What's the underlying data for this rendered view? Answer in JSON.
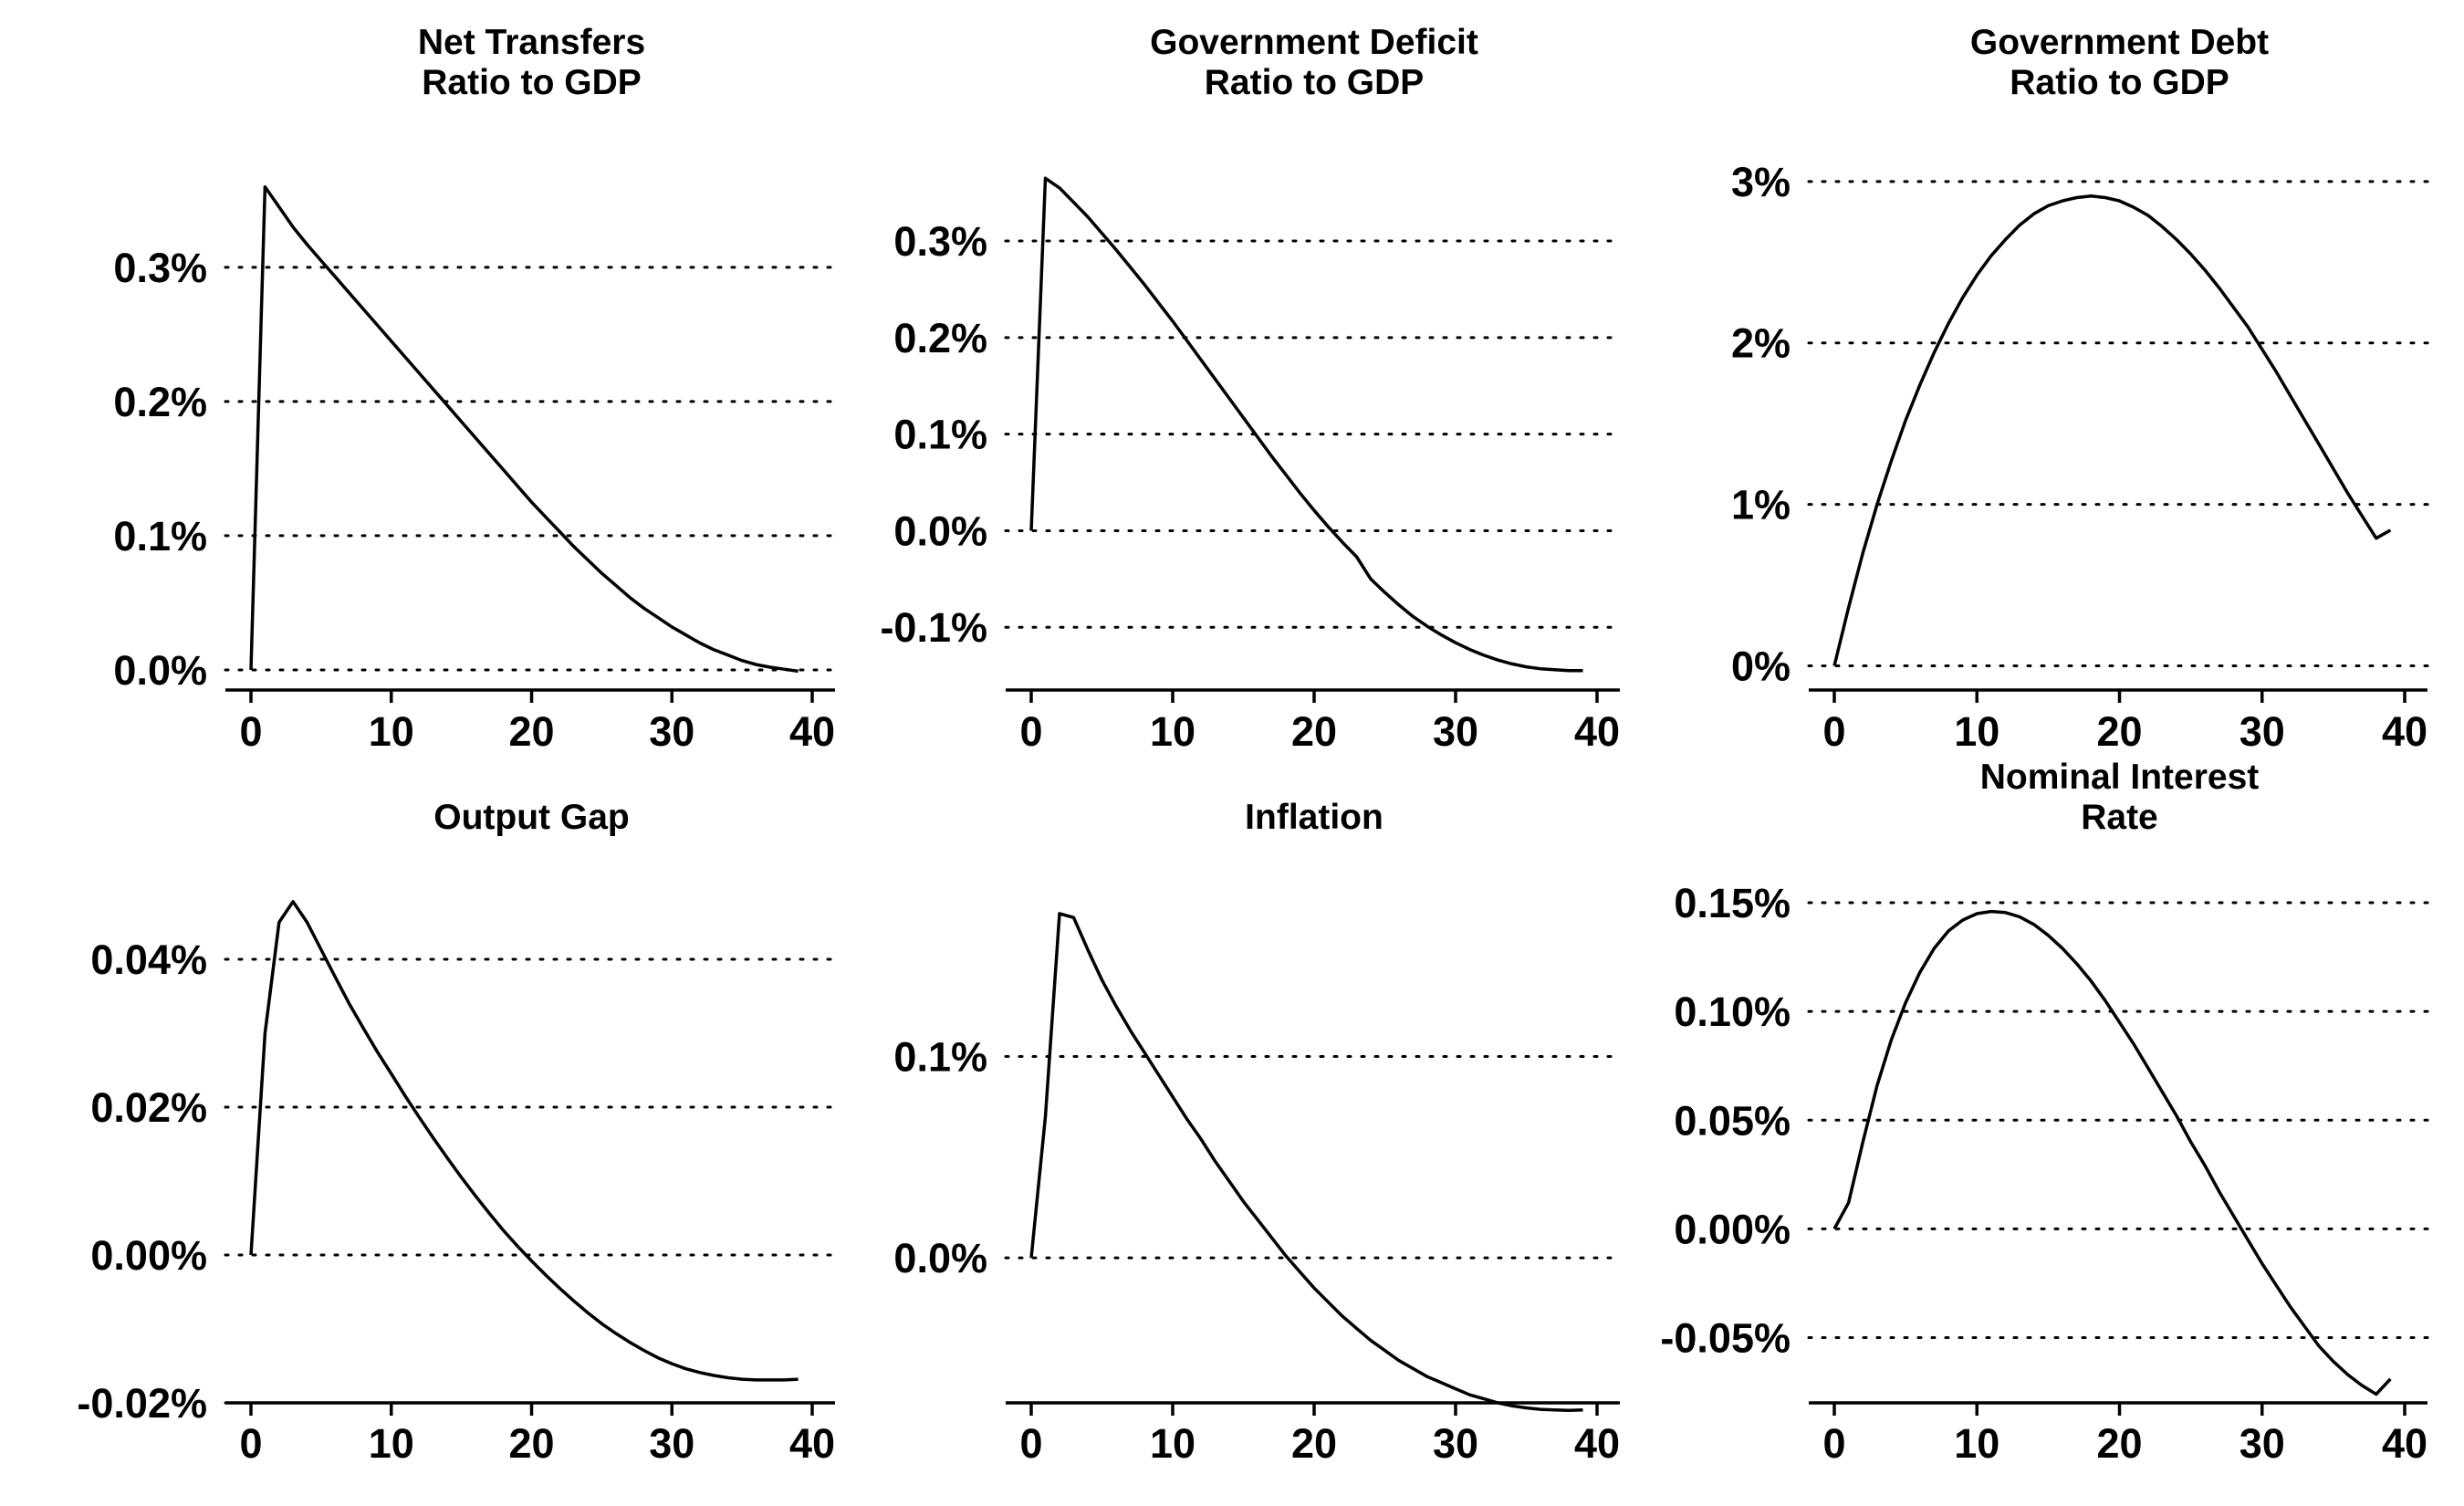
{
  "chart_data": [
    {
      "type": "line",
      "title": [
        "Net Transfers",
        "Ratio to GDP"
      ],
      "xlim": [
        0,
        40
      ],
      "xticks": [
        "0",
        "10",
        "20",
        "30",
        "40"
      ],
      "ylim": [
        -0.015,
        0.37
      ],
      "yticks": [
        0.0,
        0.1,
        0.2,
        0.3
      ],
      "ytick_labels": [
        "0.0%",
        "0.1%",
        "0.2%",
        "0.3%"
      ],
      "grid": true,
      "series": [
        {
          "x": [
            0,
            1,
            2,
            3,
            4,
            5,
            6,
            7,
            8,
            9,
            10,
            11,
            12,
            13,
            14,
            15,
            16,
            17,
            18,
            19,
            20,
            21,
            22,
            23,
            24,
            25,
            26,
            27,
            28,
            29,
            30,
            31,
            32,
            33,
            34,
            35,
            36,
            37,
            38,
            39
          ],
          "values": [
            0,
            0.36,
            0.345,
            0.33,
            0.317,
            0.305,
            0.293,
            0.281,
            0.269,
            0.257,
            0.245,
            0.233,
            0.221,
            0.209,
            0.197,
            0.185,
            0.173,
            0.161,
            0.149,
            0.137,
            0.125,
            0.114,
            0.103,
            0.092,
            0.082,
            0.072,
            0.063,
            0.054,
            0.046,
            0.039,
            0.032,
            0.026,
            0.02,
            0.015,
            0.011,
            0.007,
            0.004,
            0.002,
            0.0005,
            -0.001
          ]
        }
      ]
    },
    {
      "type": "line",
      "title": [
        "Government Deficit",
        "Ratio to GDP"
      ],
      "xlim": [
        0,
        40
      ],
      "xticks": [
        "0",
        "10",
        "20",
        "30",
        "40"
      ],
      "ylim": [
        -0.165,
        0.37
      ],
      "yticks": [
        -0.1,
        0.0,
        0.1,
        0.2,
        0.3
      ],
      "ytick_labels": [
        "-0.1%",
        "0.0%",
        "0.1%",
        "0.2%",
        "0.3%"
      ],
      "grid": true,
      "series": [
        {
          "x": [
            0,
            1,
            2,
            3,
            4,
            5,
            6,
            7,
            8,
            9,
            10,
            11,
            12,
            13,
            14,
            15,
            16,
            17,
            18,
            19,
            20,
            21,
            22,
            23,
            24,
            25,
            26,
            27,
            28,
            29,
            30,
            31,
            32,
            33,
            34,
            35,
            36,
            37,
            38,
            39
          ],
          "values": [
            0,
            0.365,
            0.355,
            0.34,
            0.325,
            0.308,
            0.291,
            0.273,
            0.255,
            0.236,
            0.217,
            0.197,
            0.177,
            0.157,
            0.137,
            0.117,
            0.097,
            0.077,
            0.058,
            0.039,
            0.021,
            0.004,
            -0.012,
            -0.027,
            -0.05,
            -0.064,
            -0.077,
            -0.089,
            -0.099,
            -0.108,
            -0.116,
            -0.123,
            -0.129,
            -0.134,
            -0.138,
            -0.141,
            -0.143,
            -0.144,
            -0.145,
            -0.145
          ]
        }
      ]
    },
    {
      "type": "line",
      "title": [
        "Government Debt",
        "Ratio to GDP"
      ],
      "xlim": [
        0,
        40
      ],
      "xticks": [
        "0",
        "10",
        "20",
        "30",
        "40"
      ],
      "ylim": [
        -0.15,
        3.05
      ],
      "yticks": [
        0,
        1,
        2,
        3
      ],
      "ytick_labels": [
        "0%",
        "1%",
        "2%",
        "3%"
      ],
      "grid": true,
      "series": [
        {
          "x": [
            0,
            1,
            2,
            3,
            4,
            5,
            6,
            7,
            8,
            9,
            10,
            11,
            12,
            13,
            14,
            15,
            16,
            17,
            18,
            19,
            20,
            21,
            22,
            23,
            24,
            25,
            26,
            27,
            28,
            29,
            30,
            31,
            32,
            33,
            34,
            35,
            36,
            37,
            38,
            39
          ],
          "values": [
            0,
            0.36,
            0.7,
            1.0,
            1.27,
            1.52,
            1.74,
            1.94,
            2.12,
            2.28,
            2.42,
            2.54,
            2.64,
            2.73,
            2.8,
            2.85,
            2.88,
            2.9,
            2.91,
            2.9,
            2.88,
            2.84,
            2.79,
            2.72,
            2.64,
            2.55,
            2.45,
            2.34,
            2.22,
            2.1,
            1.96,
            1.82,
            1.67,
            1.52,
            1.37,
            1.22,
            1.07,
            0.93,
            0.79,
            0.84
          ]
        }
      ]
    },
    {
      "type": "line",
      "title": [
        "Output Gap"
      ],
      "xlim": [
        0,
        40
      ],
      "xticks": [
        "0",
        "10",
        "20",
        "30",
        "40"
      ],
      "ylim": [
        -0.02,
        0.05
      ],
      "yticks": [
        -0.02,
        0.0,
        0.02,
        0.04
      ],
      "ytick_labels": [
        "-0.02%",
        "0.00%",
        "0.02%",
        "0.04%"
      ],
      "grid": true,
      "series": [
        {
          "x": [
            0,
            1,
            2,
            3,
            4,
            5,
            6,
            7,
            8,
            9,
            10,
            11,
            12,
            13,
            14,
            15,
            16,
            17,
            18,
            19,
            20,
            21,
            22,
            23,
            24,
            25,
            26,
            27,
            28,
            29,
            30,
            31,
            32,
            33,
            34,
            35,
            36,
            37,
            38,
            39
          ],
          "values": [
            0,
            0.03,
            0.045,
            0.0478,
            0.045,
            0.0413,
            0.0376,
            0.034,
            0.0307,
            0.0275,
            0.0245,
            0.0215,
            0.0186,
            0.0158,
            0.0131,
            0.0105,
            0.008,
            0.0056,
            0.0033,
            0.0012,
            -0.0008,
            -0.0027,
            -0.0045,
            -0.0062,
            -0.0078,
            -0.0093,
            -0.0106,
            -0.0118,
            -0.0129,
            -0.0139,
            -0.0147,
            -0.0154,
            -0.0159,
            -0.0163,
            -0.0166,
            -0.0168,
            -0.0169,
            -0.0169,
            -0.0169,
            -0.0168
          ]
        }
      ]
    },
    {
      "type": "line",
      "title": [
        "Inflation"
      ],
      "xlim": [
        0,
        40
      ],
      "xticks": [
        "0",
        "10",
        "20",
        "30",
        "40"
      ],
      "ylim": [
        -0.072,
        0.185
      ],
      "yticks": [
        0.0,
        0.1
      ],
      "ytick_labels": [
        "0.0%",
        "0.1%"
      ],
      "grid": true,
      "series": [
        {
          "x": [
            0,
            1,
            2,
            3,
            4,
            5,
            6,
            7,
            8,
            9,
            10,
            11,
            12,
            13,
            14,
            15,
            16,
            17,
            18,
            19,
            20,
            21,
            22,
            23,
            24,
            25,
            26,
            27,
            28,
            29,
            30,
            31,
            32,
            33,
            34,
            35,
            36,
            37,
            38,
            39
          ],
          "values": [
            0,
            0.07,
            0.171,
            0.169,
            0.153,
            0.138,
            0.125,
            0.113,
            0.102,
            0.091,
            0.08,
            0.069,
            0.059,
            0.048,
            0.038,
            0.028,
            0.019,
            0.01,
            0.001,
            -0.007,
            -0.015,
            -0.022,
            -0.029,
            -0.035,
            -0.041,
            -0.046,
            -0.051,
            -0.055,
            -0.059,
            -0.062,
            -0.065,
            -0.068,
            -0.07,
            -0.072,
            -0.0735,
            -0.0745,
            -0.0752,
            -0.0755,
            -0.0757,
            -0.0755
          ]
        }
      ]
    },
    {
      "type": "line",
      "title": [
        "Nominal Interest",
        "Rate"
      ],
      "xlim": [
        0,
        40
      ],
      "xticks": [
        "0",
        "10",
        "20",
        "30",
        "40"
      ],
      "ylim": [
        -0.08,
        0.158
      ],
      "yticks": [
        -0.05,
        0.0,
        0.05,
        0.1,
        0.15
      ],
      "ytick_labels": [
        "-0.05%",
        "0.00%",
        "0.05%",
        "0.10%",
        "0.15%"
      ],
      "grid": true,
      "series": [
        {
          "x": [
            0,
            1,
            2,
            3,
            4,
            5,
            6,
            7,
            8,
            9,
            10,
            11,
            12,
            13,
            14,
            15,
            16,
            17,
            18,
            19,
            20,
            21,
            22,
            23,
            24,
            25,
            26,
            27,
            28,
            29,
            30,
            31,
            32,
            33,
            34,
            35,
            36,
            37,
            38,
            39
          ],
          "values": [
            0,
            0.012,
            0.04,
            0.066,
            0.087,
            0.104,
            0.118,
            0.129,
            0.137,
            0.142,
            0.145,
            0.146,
            0.1455,
            0.1435,
            0.14,
            0.135,
            0.129,
            0.122,
            0.114,
            0.105,
            0.095,
            0.085,
            0.074,
            0.063,
            0.052,
            0.04,
            0.029,
            0.017,
            0.006,
            -0.005,
            -0.016,
            -0.026,
            -0.036,
            -0.045,
            -0.054,
            -0.061,
            -0.067,
            -0.072,
            -0.076,
            -0.069
          ]
        }
      ]
    }
  ]
}
